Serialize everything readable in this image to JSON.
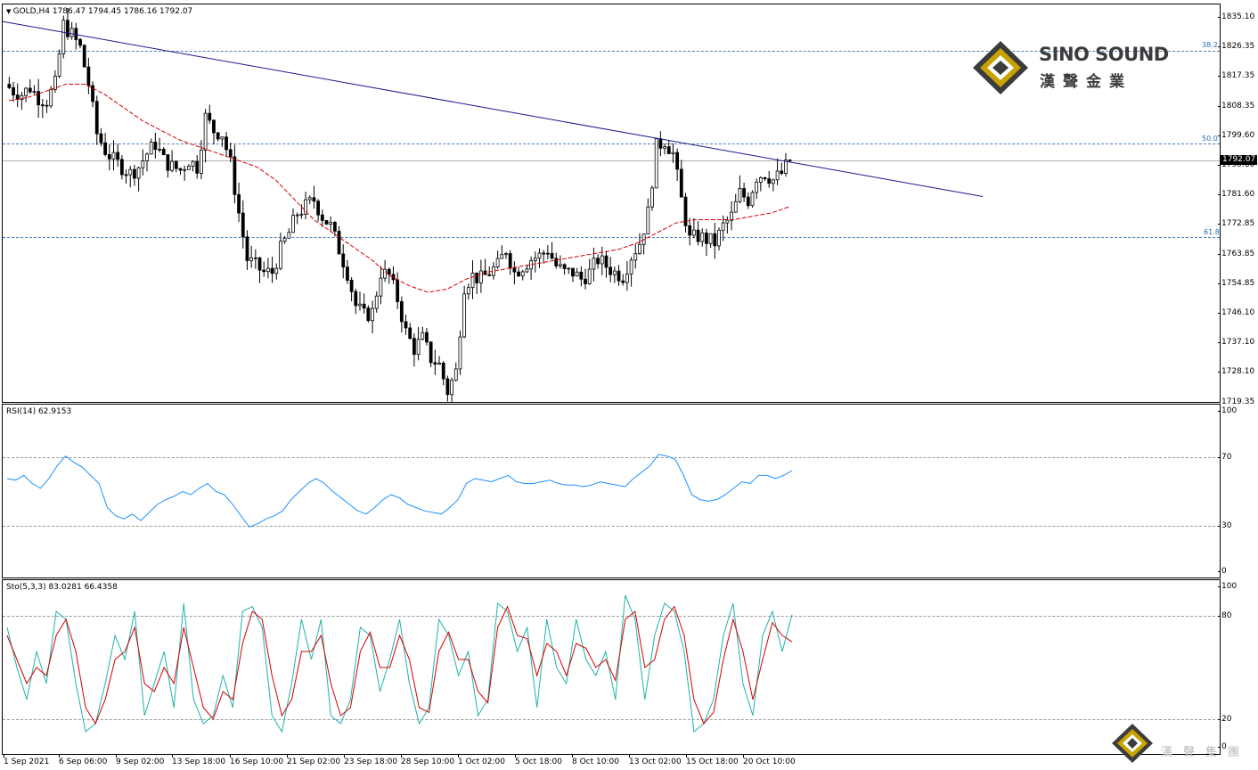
{
  "chart": {
    "header": "GOLD,H4  1786.47 1794.45 1786.16 1792.07",
    "last_price": "1792.07",
    "price_ticks": [
      "1835.10",
      "1826.35",
      "1817.35",
      "1808.35",
      "1799.60",
      "1790.60",
      "1781.60",
      "1772.85",
      "1763.85",
      "1754.85",
      "1746.10",
      "1737.10",
      "1728.10",
      "1719.35"
    ],
    "fib_levels": [
      {
        "label": "38.2"
      },
      {
        "label": "50.0"
      },
      {
        "label": "61.8"
      }
    ],
    "time_labels": [
      "1 Sep 2021",
      "6 Sep 06:00",
      "9 Sep 02:00",
      "13 Sep 18:00",
      "16 Sep 10:00",
      "21 Sep 02:00",
      "23 Sep 18:00",
      "28 Sep 10:00",
      "1 Oct 02:00",
      "5 Oct 18:00",
      "8 Oct 10:00",
      "13 Oct 02:00",
      "15 Oct 18:00",
      "20 Oct 10:00"
    ]
  },
  "rsi": {
    "label": "RSI(14) 62.9153",
    "ticks": [
      "100",
      "70",
      "30",
      "0"
    ]
  },
  "stochastic": {
    "label": "Sto(5,3,3) 83.0281 66.4358",
    "ticks": [
      "100",
      "80",
      "20",
      "0"
    ]
  },
  "logo": {
    "name": "SINO SOUND",
    "chinese": "漢聲金業"
  },
  "watermark": {
    "text": "漢聲集團"
  },
  "colors": {
    "trendline": "#1a1a8c",
    "ma": "#d40000",
    "rsi": "#1e90ff",
    "sto_main": "#20b2aa",
    "sto_signal": "#d40000",
    "logo_gold": "#c8a200"
  },
  "chart_data": {
    "type": "candlestick",
    "symbol": "GOLD",
    "timeframe": "H4",
    "ylim": [
      1719.35,
      1835.1
    ],
    "close_path": [
      1815,
      1813,
      1812,
      1814,
      1811,
      1810,
      1815,
      1833,
      1830,
      1826,
      1815,
      1800,
      1795,
      1792,
      1790,
      1788,
      1790,
      1794,
      1797,
      1792,
      1790,
      1789,
      1792,
      1790,
      1805,
      1801,
      1800,
      1791,
      1776,
      1762,
      1760,
      1758,
      1758,
      1765,
      1770,
      1776,
      1778,
      1780,
      1775,
      1772,
      1765,
      1758,
      1748,
      1745,
      1746,
      1758,
      1757,
      1750,
      1740,
      1735,
      1738,
      1732,
      1730,
      1722,
      1728,
      1754,
      1757,
      1756,
      1758,
      1760,
      1765,
      1758,
      1760,
      1762,
      1763,
      1765,
      1760,
      1758,
      1758,
      1756,
      1758,
      1762,
      1760,
      1758,
      1757,
      1763,
      1767,
      1776,
      1796,
      1798,
      1794,
      1780,
      1768,
      1769,
      1768,
      1767,
      1772,
      1775,
      1782,
      1780,
      1787,
      1788,
      1786,
      1788,
      1792
    ],
    "ma_path": [
      1810,
      1811,
      1813,
      1815,
      1815,
      1812,
      1808,
      1804,
      1801,
      1798,
      1796,
      1794,
      1792,
      1790,
      1786,
      1780,
      1774,
      1770,
      1766,
      1762,
      1757,
      1754,
      1752,
      1753,
      1756,
      1758,
      1759,
      1760,
      1761,
      1762,
      1763,
      1764,
      1765,
      1767,
      1770,
      1773,
      1774,
      1774,
      1774,
      1775,
      1776,
      1778
    ],
    "trendline": {
      "start": 1834,
      "end": 1781
    },
    "ma_color": "red",
    "rsi": {
      "period": 14,
      "last": 62.9153,
      "ylim": [
        0,
        100
      ],
      "levels": [
        30,
        70
      ],
      "values": [
        58,
        57,
        60,
        55,
        52,
        58,
        66,
        72,
        68,
        65,
        60,
        55,
        40,
        35,
        33,
        36,
        32,
        37,
        42,
        45,
        47,
        50,
        48,
        52,
        55,
        50,
        48,
        42,
        35,
        28,
        30,
        33,
        35,
        38,
        45,
        50,
        55,
        58,
        55,
        50,
        46,
        42,
        38,
        36,
        40,
        45,
        48,
        46,
        42,
        40,
        38,
        37,
        36,
        40,
        45,
        55,
        58,
        57,
        56,
        58,
        60,
        56,
        55,
        55,
        56,
        57,
        55,
        54,
        54,
        53,
        54,
        56,
        55,
        54,
        53,
        58,
        62,
        66,
        73,
        72,
        70,
        60,
        48,
        45,
        44,
        45,
        48,
        52,
        56,
        55,
        60,
        60,
        58,
        60,
        63
      ]
    },
    "stochastic": {
      "params": "5,3,3",
      "main_last": 83.0281,
      "signal_last": 66.4358,
      "ylim": [
        0,
        100
      ],
      "levels": [
        20,
        80
      ],
      "main": [
        75,
        50,
        30,
        60,
        40,
        85,
        80,
        40,
        10,
        15,
        40,
        70,
        55,
        85,
        20,
        40,
        60,
        25,
        90,
        30,
        15,
        20,
        45,
        25,
        85,
        88,
        75,
        20,
        10,
        40,
        80,
        55,
        80,
        20,
        15,
        30,
        75,
        70,
        35,
        55,
        80,
        40,
        15,
        25,
        80,
        70,
        45,
        60,
        20,
        30,
        90,
        85,
        60,
        75,
        25,
        80,
        50,
        40,
        80,
        55,
        45,
        60,
        30,
        95,
        80,
        30,
        70,
        90,
        85,
        60,
        10,
        15,
        30,
        70,
        90,
        40,
        20,
        70,
        85,
        60,
        83
      ],
      "signal": [
        70,
        55,
        40,
        50,
        45,
        70,
        80,
        60,
        25,
        15,
        30,
        55,
        60,
        75,
        40,
        35,
        50,
        40,
        75,
        50,
        25,
        18,
        35,
        30,
        65,
        85,
        80,
        45,
        20,
        30,
        60,
        60,
        70,
        40,
        20,
        25,
        60,
        72,
        50,
        50,
        70,
        55,
        25,
        22,
        60,
        72,
        55,
        55,
        35,
        28,
        75,
        88,
        70,
        68,
        45,
        65,
        60,
        45,
        65,
        62,
        50,
        55,
        42,
        80,
        85,
        50,
        55,
        80,
        88,
        70,
        30,
        15,
        22,
        55,
        80,
        60,
        30,
        55,
        78,
        70,
        66
      ]
    }
  }
}
